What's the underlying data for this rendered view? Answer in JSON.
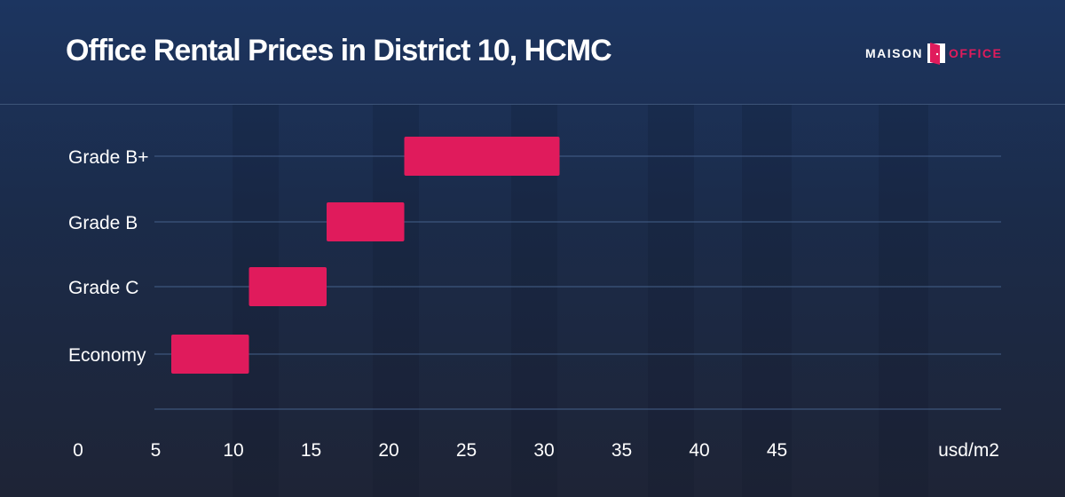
{
  "header": {
    "title": "Office Rental Prices in District 10, HCMC",
    "logo": {
      "word_left": "MAISON",
      "word_right": "OFFICE",
      "accent_color": "#e01b5c",
      "icon": "door-icon"
    }
  },
  "chart_data": {
    "type": "bar",
    "orientation": "horizontal-range",
    "title": "Office Rental Prices in District 10, HCMC",
    "categories": [
      "Grade B+",
      "Grade B",
      "Grade C",
      "Economy"
    ],
    "ranges": [
      [
        21,
        31
      ],
      [
        16,
        21
      ],
      [
        11,
        16
      ],
      [
        6,
        11
      ]
    ],
    "x_ticks": [
      0,
      5,
      10,
      15,
      20,
      25,
      30,
      35,
      40,
      45
    ],
    "x_unit_label": "usd/m2",
    "xlim": [
      0,
      50
    ],
    "bar_color": "#e01b5c",
    "grid": true
  }
}
